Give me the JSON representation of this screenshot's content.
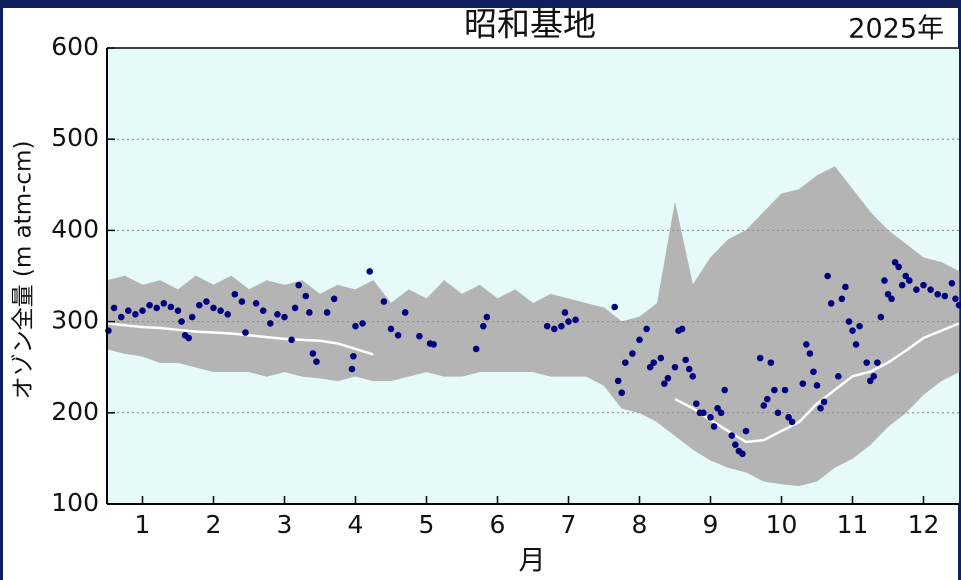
{
  "chart_data": {
    "type": "scatter",
    "title": "昭和基地",
    "year_label": "2025年",
    "x_label": "月",
    "y_label": "オゾン全量 (m atm-cm)",
    "xlim": [
      0.5,
      12.5
    ],
    "ylim": [
      100,
      600
    ],
    "xticks": [
      1,
      2,
      3,
      4,
      5,
      6,
      7,
      8,
      9,
      10,
      11,
      12
    ],
    "yticks": [
      100,
      200,
      300,
      400,
      500,
      600
    ],
    "grid": true,
    "range_band": {
      "color": "#b4b4b4",
      "x": [
        0.5,
        0.75,
        1,
        1.25,
        1.5,
        1.75,
        2,
        2.25,
        2.5,
        2.75,
        3,
        3.25,
        3.5,
        3.75,
        4,
        4.25,
        4.5,
        4.75,
        5,
        5.25,
        5.5,
        5.75,
        6,
        6.25,
        6.5,
        6.75,
        7,
        7.25,
        7.5,
        7.75,
        8,
        8.25,
        8.5,
        8.75,
        9,
        9.25,
        9.5,
        9.75,
        10,
        10.25,
        10.5,
        10.75,
        11,
        11.25,
        11.5,
        11.75,
        12,
        12.25,
        12.5
      ],
      "upper": [
        345,
        350,
        340,
        345,
        335,
        350,
        340,
        350,
        335,
        345,
        340,
        345,
        330,
        340,
        335,
        345,
        320,
        335,
        325,
        345,
        330,
        340,
        325,
        335,
        320,
        330,
        325,
        320,
        315,
        300,
        305,
        320,
        430,
        340,
        370,
        390,
        400,
        420,
        440,
        445,
        460,
        470,
        445,
        420,
        400,
        385,
        370,
        365,
        355
      ],
      "lower": [
        270,
        265,
        262,
        255,
        255,
        250,
        245,
        245,
        245,
        240,
        245,
        240,
        238,
        235,
        240,
        235,
        235,
        240,
        245,
        240,
        240,
        245,
        245,
        245,
        245,
        240,
        240,
        240,
        230,
        205,
        200,
        190,
        175,
        160,
        148,
        140,
        135,
        125,
        122,
        120,
        125,
        140,
        150,
        165,
        185,
        200,
        220,
        235,
        245
      ]
    },
    "mean_line": {
      "color": "#ffffff",
      "values": [
        298,
        296,
        294,
        293,
        291,
        289,
        288,
        287,
        285,
        283,
        281,
        280,
        279,
        276,
        270,
        264,
        null,
        null,
        null,
        null,
        null,
        null,
        null,
        null,
        null,
        null,
        null,
        null,
        null,
        null,
        null,
        null,
        215,
        205,
        192,
        180,
        168,
        170,
        180,
        190,
        210,
        225,
        240,
        245,
        255,
        268,
        282,
        290,
        298
      ]
    },
    "points": {
      "color": "#000080",
      "x": [
        0.52,
        0.6,
        0.7,
        0.8,
        0.9,
        1.0,
        1.1,
        1.2,
        1.3,
        1.4,
        1.5,
        1.55,
        1.6,
        1.65,
        1.7,
        1.8,
        1.9,
        2.0,
        2.1,
        2.2,
        2.3,
        2.4,
        2.45,
        2.6,
        2.7,
        2.8,
        2.9,
        3.0,
        3.1,
        3.15,
        3.2,
        3.3,
        3.35,
        3.4,
        3.45,
        3.6,
        3.7,
        3.95,
        3.97,
        4.0,
        4.1,
        4.2,
        4.4,
        4.5,
        4.6,
        4.7,
        4.9,
        5.05,
        5.1,
        5.7,
        5.8,
        5.85,
        6.7,
        6.8,
        6.9,
        6.95,
        7.0,
        7.1,
        7.65,
        7.7,
        7.75,
        7.8,
        7.9,
        8.0,
        8.1,
        8.15,
        8.2,
        8.3,
        8.35,
        8.4,
        8.5,
        8.55,
        8.6,
        8.65,
        8.7,
        8.75,
        8.8,
        8.85,
        8.9,
        9.0,
        9.05,
        9.1,
        9.15,
        9.2,
        9.3,
        9.35,
        9.4,
        9.45,
        9.5,
        9.7,
        9.75,
        9.8,
        9.85,
        9.9,
        9.95,
        10.05,
        10.1,
        10.15,
        10.3,
        10.35,
        10.4,
        10.45,
        10.5,
        10.55,
        10.6,
        10.65,
        10.7,
        10.8,
        10.85,
        10.9,
        10.95,
        11.0,
        11.05,
        11.1,
        11.2,
        11.25,
        11.3,
        11.35,
        11.4,
        11.45,
        11.5,
        11.55,
        11.6,
        11.65,
        11.7,
        11.75,
        11.8,
        11.9,
        12.0,
        12.1,
        12.2,
        12.3,
        12.4,
        12.45,
        12.5
      ],
      "y": [
        290,
        315,
        305,
        312,
        308,
        312,
        318,
        315,
        320,
        316,
        312,
        300,
        285,
        282,
        305,
        318,
        322,
        315,
        312,
        308,
        330,
        322,
        288,
        320,
        312,
        298,
        308,
        305,
        280,
        315,
        340,
        328,
        310,
        265,
        256,
        310,
        325,
        248,
        262,
        295,
        298,
        355,
        322,
        292,
        285,
        310,
        284,
        276,
        275,
        270,
        295,
        305,
        295,
        292,
        295,
        310,
        300,
        302,
        316,
        235,
        222,
        255,
        265,
        280,
        292,
        250,
        255,
        260,
        232,
        238,
        250,
        290,
        292,
        258,
        248,
        240,
        210,
        200,
        200,
        195,
        185,
        205,
        200,
        225,
        175,
        165,
        158,
        155,
        180,
        260,
        208,
        215,
        255,
        225,
        200,
        225,
        195,
        190,
        232,
        275,
        265,
        245,
        230,
        205,
        212,
        350,
        320,
        240,
        325,
        338,
        300,
        290,
        275,
        295,
        255,
        235,
        240,
        255,
        305,
        345,
        330,
        325,
        365,
        360,
        340,
        350,
        345,
        335,
        340,
        335,
        330,
        328,
        342,
        325,
        318
      ]
    }
  }
}
